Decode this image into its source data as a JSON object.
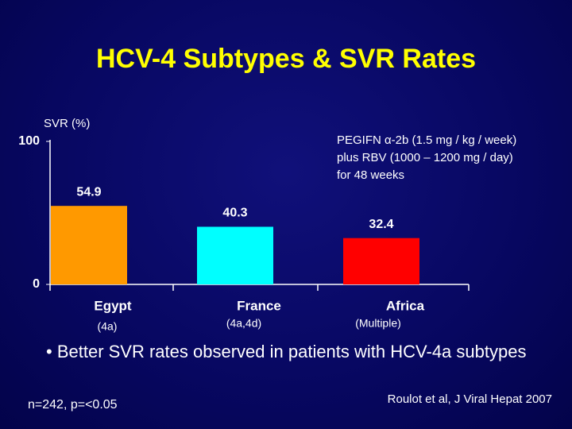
{
  "chart_data": {
    "type": "bar",
    "title": "HCV-4 Subtypes & SVR Rates",
    "ylabel": "SVR (%)",
    "categories": [
      "Egypt",
      "France",
      "Africa"
    ],
    "category_notes": [
      "(4a)",
      "(4a,4d)",
      "(Multiple)"
    ],
    "values": [
      54.9,
      40.3,
      32.4
    ],
    "colors": [
      "#ff9900",
      "#00ffff",
      "#ff0000"
    ],
    "ylim": [
      0,
      100
    ],
    "yticks": [
      0,
      100
    ],
    "annotation": [
      "PEGIFN α-2b (1.5 mg / kg / week)",
      "plus RBV (1000 – 1200 mg / day)",
      "for 48 weeks"
    ],
    "bullet": "Better SVR rates observed in patients with HCV-4a subtypes",
    "footnote": "n=242, p=<0.05",
    "source": "Roulot et al, J Viral Hepat 2007"
  }
}
